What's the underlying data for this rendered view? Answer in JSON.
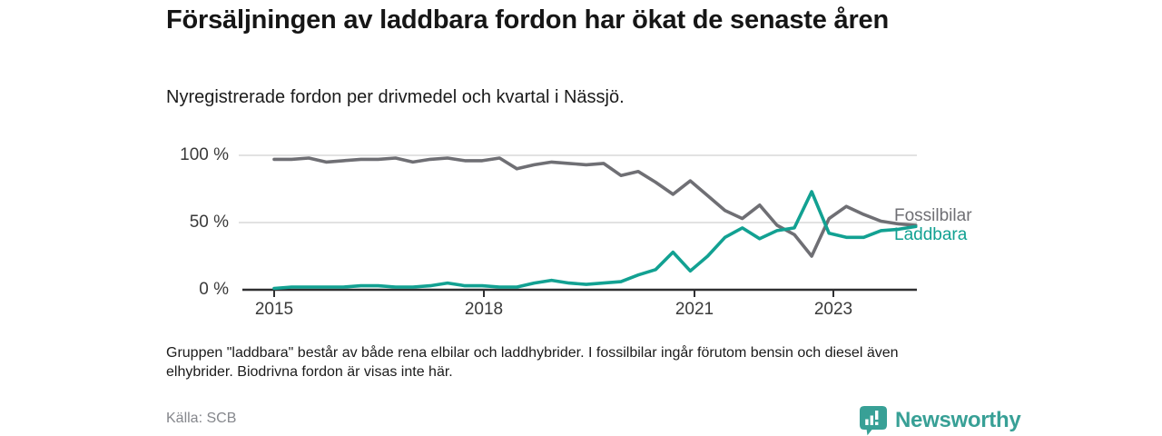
{
  "header": {
    "title": "Försäljningen av laddbara fordon har ökat de senaste åren",
    "subtitle": "Nyregistrerade fordon per drivmedel och kvartal i Nässjö."
  },
  "footer": {
    "note": "Gruppen \"laddbara\" består av både rena elbilar och laddhybrider. I fossilbilar ingår förutom bensin och diesel även elhybrider. Biodrivna fordon är visas inte här.",
    "source": "Källa: SCB",
    "brand": "Newsworthy"
  },
  "colors": {
    "fossilbilar": "#6f6f74",
    "laddbara": "#12a192",
    "axis": "#2f2f31",
    "grid": "#d9d9d9",
    "tick_text": "#3a3a3a",
    "brand_teal": "#38a096"
  },
  "chart_data": {
    "type": "line",
    "title": "Försäljningen av laddbara fordon har ökat de senaste åren",
    "subtitle": "Nyregistrerade fordon per drivmedel och kvartal i Nässjö.",
    "unit": "%",
    "ylim": [
      0,
      100
    ],
    "grid": "horizontal only",
    "legend_position": "right end of lines",
    "y_ticks": [
      "100 %",
      "50 %",
      "0 %"
    ],
    "x_ticks": [
      "2015",
      "2018",
      "2021",
      "2023"
    ],
    "x": [
      "2015Q1",
      "2015Q2",
      "2015Q3",
      "2015Q4",
      "2016Q1",
      "2016Q2",
      "2016Q3",
      "2016Q4",
      "2017Q1",
      "2017Q2",
      "2017Q3",
      "2017Q4",
      "2018Q1",
      "2018Q2",
      "2018Q3",
      "2018Q4",
      "2019Q1",
      "2019Q2",
      "2019Q3",
      "2019Q4",
      "2020Q1",
      "2020Q2",
      "2020Q3",
      "2020Q4",
      "2021Q1",
      "2021Q2",
      "2021Q3",
      "2021Q4",
      "2022Q1",
      "2022Q2",
      "2022Q3",
      "2022Q4",
      "2023Q1",
      "2023Q2",
      "2023Q3",
      "2023Q4",
      "2024Q1",
      "2024Q2"
    ],
    "series": [
      {
        "name": "Fossilbilar",
        "color": "#6f6f74",
        "values": [
          97,
          97,
          98,
          95,
          96,
          97,
          97,
          98,
          95,
          97,
          98,
          96,
          96,
          98,
          90,
          93,
          95,
          94,
          93,
          94,
          85,
          88,
          80,
          71,
          81,
          70,
          59,
          53,
          63,
          48,
          41,
          25,
          53,
          62,
          56,
          51,
          49,
          48
        ]
      },
      {
        "name": "Laddbara",
        "color": "#12a192",
        "values": [
          1,
          2,
          2,
          2,
          2,
          3,
          3,
          2,
          2,
          3,
          5,
          3,
          3,
          2,
          2,
          5,
          7,
          5,
          4,
          5,
          6,
          11,
          15,
          28,
          14,
          25,
          39,
          46,
          38,
          44,
          46,
          73,
          42,
          39,
          39,
          44,
          45,
          47
        ]
      }
    ]
  }
}
